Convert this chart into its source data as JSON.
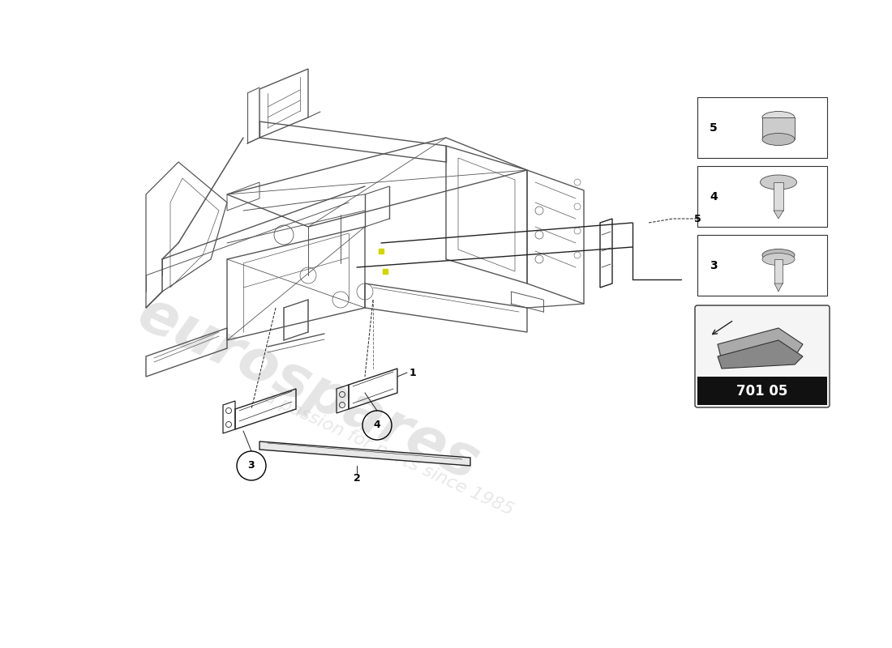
{
  "bg_color": "#ffffff",
  "watermark_text": "eurospares",
  "watermark_subtext": "a passion for parts since 1985",
  "watermark_color": "#cccccc",
  "page_code": "701 05",
  "line_color": "#555555",
  "dark_line_color": "#222222",
  "yellow_color": "#d4d400",
  "label_color": "#000000"
}
